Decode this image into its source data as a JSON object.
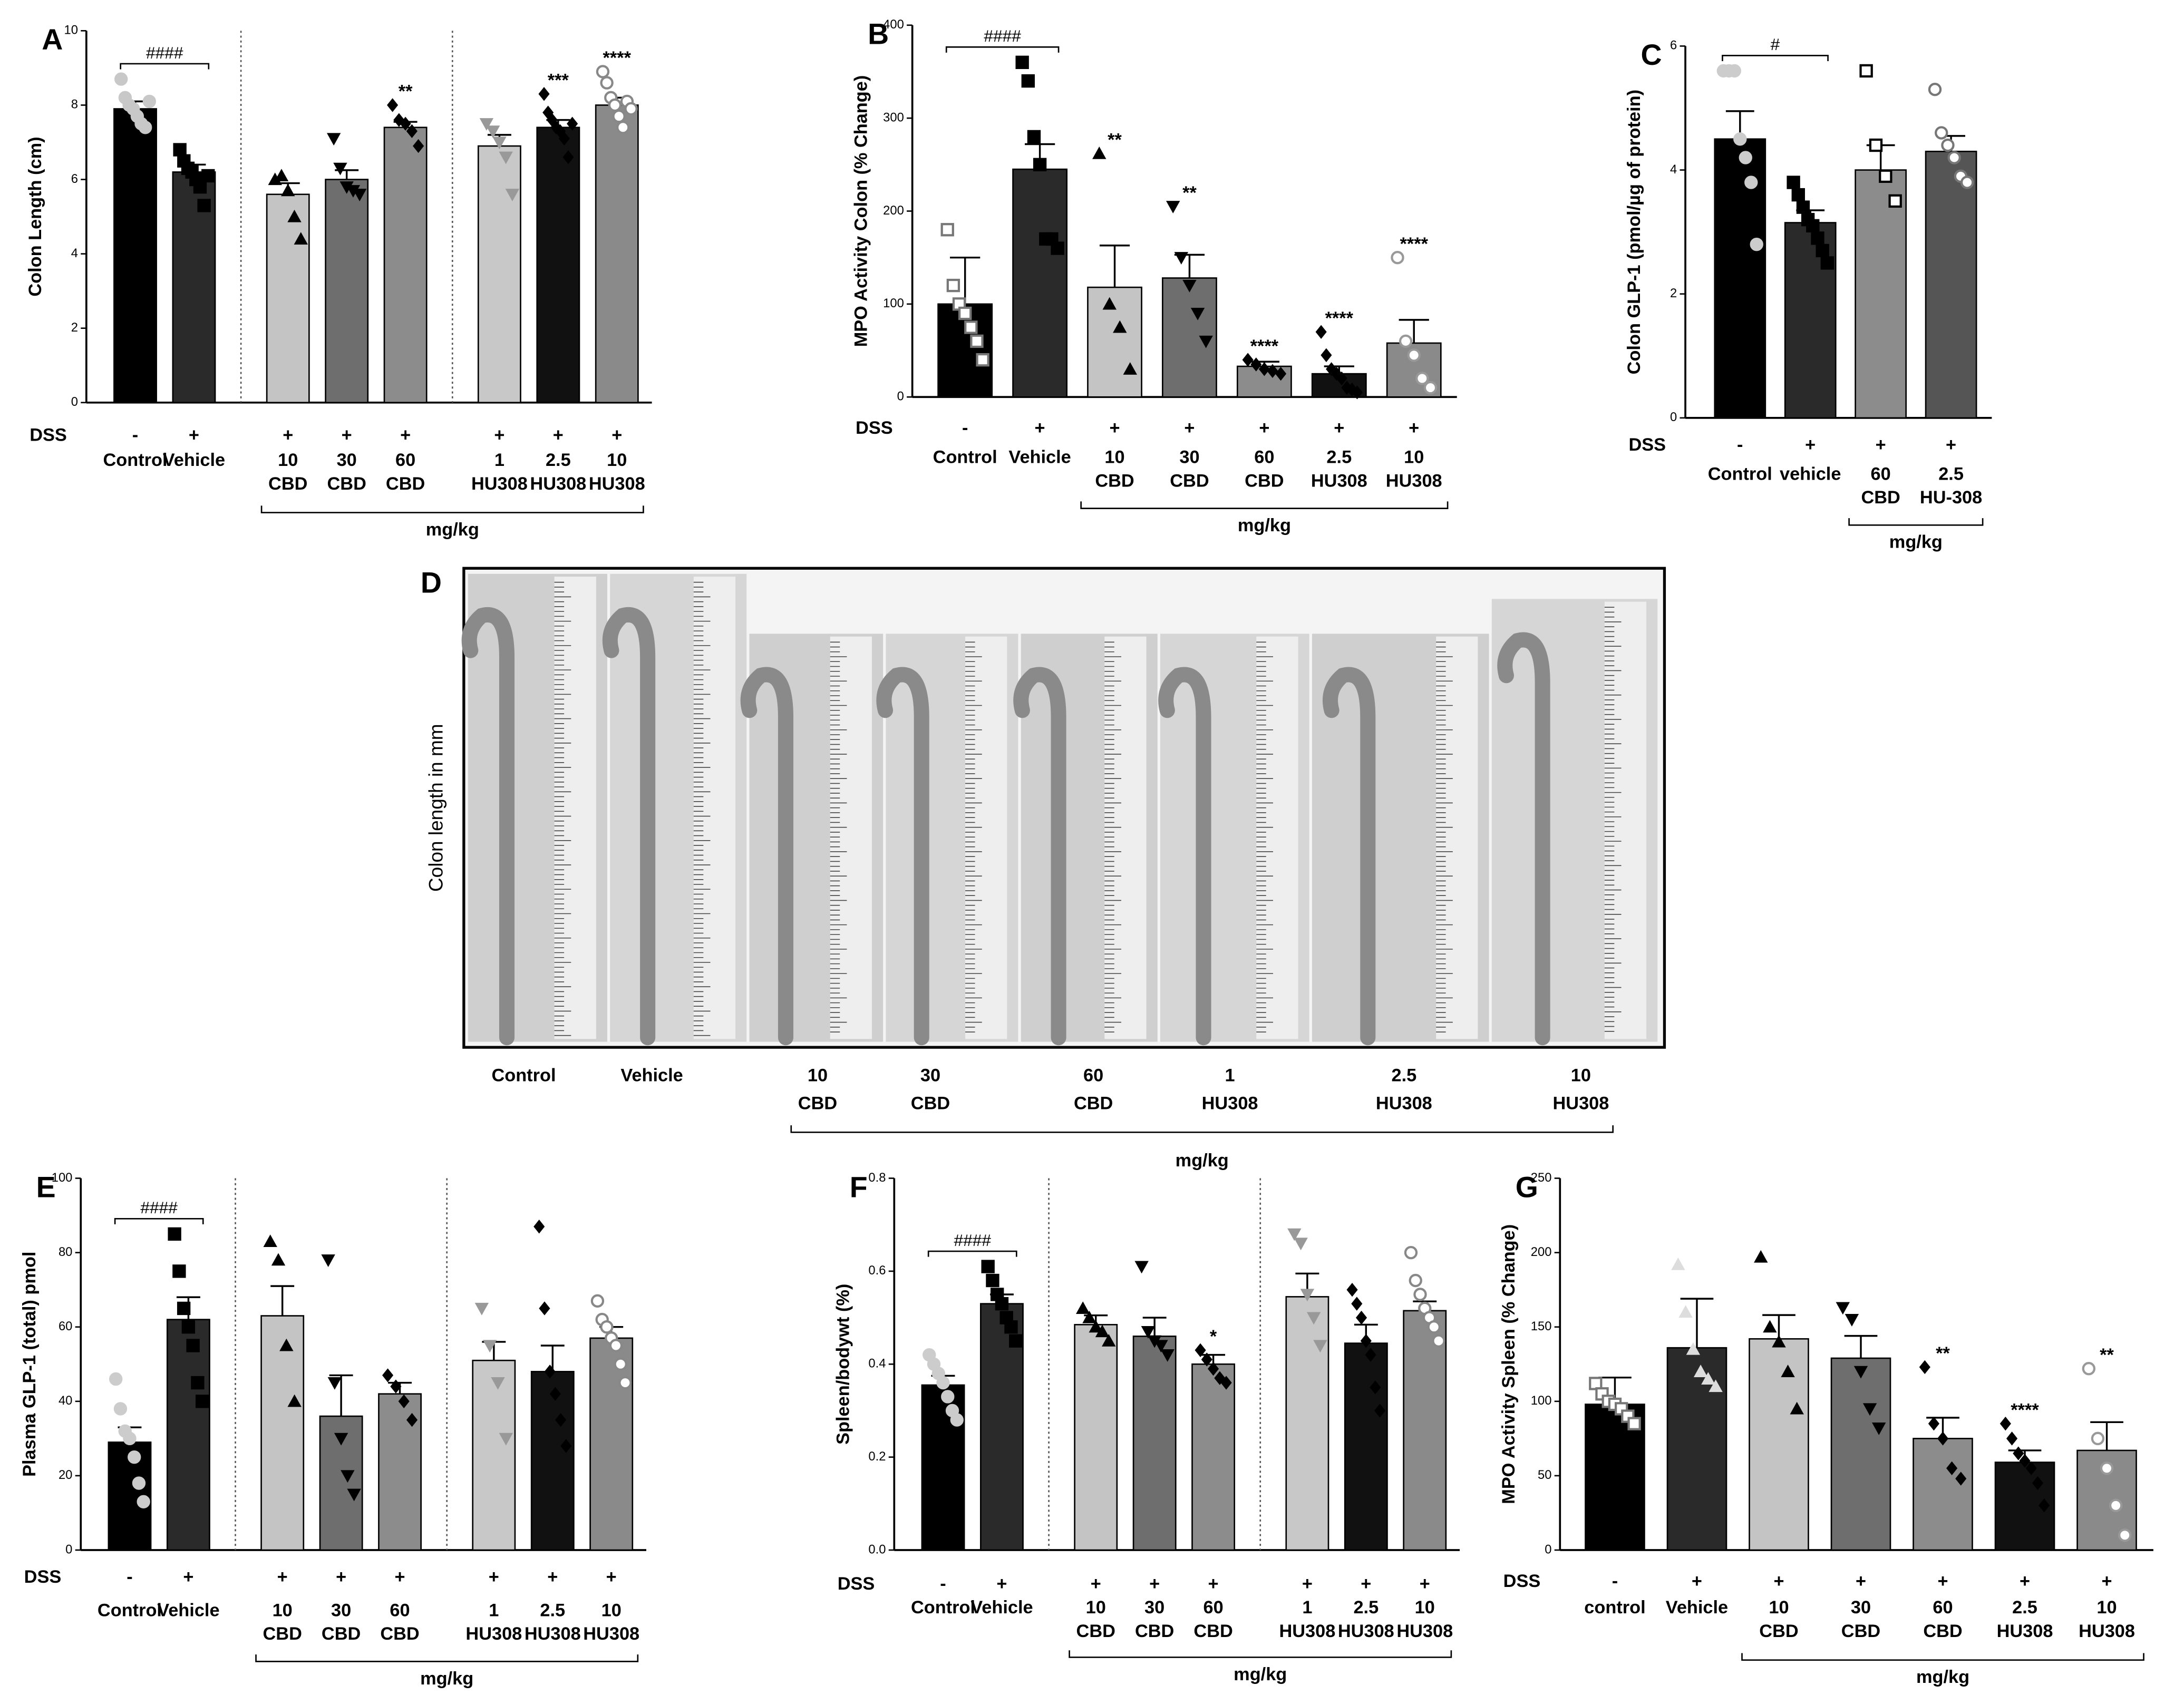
{
  "chart_data": [
    {
      "type": "bar",
      "panel": "A",
      "y_label": "Colon Length (cm)",
      "ylim": [
        0,
        10
      ],
      "yticks": [
        0,
        2,
        4,
        6,
        8,
        10
      ],
      "factor_label": "DSS",
      "factor": [
        "-",
        "+",
        "+",
        "+",
        "+",
        "+",
        "+",
        "+"
      ],
      "categories": [
        [
          "Control"
        ],
        [
          "Vehicle"
        ],
        [
          "10",
          "CBD"
        ],
        [
          "30",
          "CBD"
        ],
        [
          "60",
          "CBD"
        ],
        [
          "1",
          "HU308"
        ],
        [
          "2.5",
          "HU308"
        ],
        [
          "10",
          "HU308"
        ]
      ],
      "values": [
        7.9,
        6.2,
        5.6,
        6.0,
        7.4,
        6.9,
        7.4,
        8.0
      ],
      "errors": [
        0.2,
        0.2,
        0.3,
        0.25,
        0.15,
        0.3,
        0.2,
        0.2
      ],
      "colors": [
        "#000000",
        "#2a2a2a",
        "#c4c4c4",
        "#6e6e6e",
        "#8c8c8c",
        "#c8c8c8",
        "#111111",
        "#8a8a8a"
      ],
      "markers": [
        "circle",
        "square",
        "triangle",
        "tri-down",
        "diamond",
        "tri-down",
        "diamond",
        "circle-open"
      ],
      "point_colors": [
        "#c8c8c8",
        "#000000",
        "#000000",
        "#000000",
        "#000000",
        "#999999",
        "#000000",
        "#888888"
      ],
      "points": [
        [
          8.7,
          8.2,
          8.0,
          7.9,
          7.7,
          7.5,
          7.4,
          8.1
        ],
        [
          6.8,
          6.5,
          6.3,
          6.2,
          6.0,
          5.8,
          5.3,
          6.1
        ],
        [
          6.0,
          6.1,
          5.7,
          5.0,
          4.4
        ],
        [
          7.1,
          6.3,
          5.8,
          5.7,
          5.6
        ],
        [
          8.0,
          7.6,
          7.5,
          7.3,
          6.9
        ],
        [
          7.5,
          7.3,
          7.0,
          6.6,
          5.6
        ],
        [
          8.3,
          7.8,
          7.6,
          7.4,
          7.3,
          7.1,
          6.6,
          7.5
        ],
        [
          8.9,
          8.6,
          8.2,
          8.0,
          7.7,
          7.4,
          8.1,
          7.9
        ]
      ],
      "significance": [
        null,
        null,
        null,
        null,
        "**",
        null,
        "***",
        "****"
      ],
      "bracket_label": "####",
      "span_label": "mg/kg",
      "dividers": true
    },
    {
      "type": "bar",
      "panel": "B",
      "y_label": "MPO Activity Colon (% Change)",
      "ylim": [
        0,
        400
      ],
      "yticks": [
        0,
        100,
        200,
        300,
        400
      ],
      "factor_label": "DSS",
      "factor": [
        "-",
        "+",
        "+",
        "+",
        "+",
        "+",
        "+"
      ],
      "categories": [
        [
          "Control"
        ],
        [
          "Vehicle"
        ],
        [
          "10",
          "CBD"
        ],
        [
          "30",
          "CBD"
        ],
        [
          "60",
          "CBD"
        ],
        [
          "2.5",
          "HU308"
        ],
        [
          "10",
          "HU308"
        ]
      ],
      "values": [
        100,
        245,
        118,
        128,
        33,
        25,
        58
      ],
      "errors": [
        50,
        27,
        45,
        25,
        5,
        8,
        25
      ],
      "colors": [
        "#000000",
        "#2a2a2a",
        "#c4c4c4",
        "#6e6e6e",
        "#8c8c8c",
        "#111111",
        "#8a8a8a"
      ],
      "markers": [
        "square-open",
        "square",
        "triangle",
        "tri-down",
        "diamond",
        "diamond",
        "circle-open"
      ],
      "point_colors": [
        "#777777",
        "#000000",
        "#000000",
        "#000000",
        "#000000",
        "#000000",
        "#999999"
      ],
      "points": [
        [
          180,
          120,
          100,
          90,
          75,
          60,
          40
        ],
        [
          360,
          340,
          280,
          250,
          170,
          170,
          160
        ],
        [
          262,
          100,
          75,
          30
        ],
        [
          205,
          150,
          120,
          90,
          60
        ],
        [
          40,
          35,
          30,
          28,
          25
        ],
        [
          70,
          45,
          30,
          25,
          20,
          10,
          8,
          5
        ],
        [
          150,
          60,
          45,
          20,
          10
        ]
      ],
      "significance": [
        null,
        null,
        "**",
        "**",
        "****",
        "****",
        "****"
      ],
      "bracket_label": "####",
      "span_label": "mg/kg",
      "dividers": false
    },
    {
      "type": "bar",
      "panel": "C",
      "y_label": "Colon GLP-1 (pmol/µg of protein)",
      "ylim": [
        0,
        6
      ],
      "yticks": [
        0,
        2,
        4,
        6
      ],
      "factor_label": "DSS",
      "factor": [
        "-",
        "+",
        "+",
        "+"
      ],
      "categories": [
        [
          "Control"
        ],
        [
          "vehicle"
        ],
        [
          "60",
          "CBD"
        ],
        [
          "2.5",
          "HU-308"
        ]
      ],
      "values": [
        4.5,
        3.15,
        4.0,
        4.3
      ],
      "errors": [
        0.45,
        0.2,
        0.4,
        0.25
      ],
      "colors": [
        "#000000",
        "#2a2a2a",
        "#8c8c8c",
        "#555555"
      ],
      "markers": [
        "circle",
        "square",
        "square-open",
        "circle-open"
      ],
      "point_colors": [
        "#cccccc",
        "#000000",
        "#000000",
        "#777777"
      ],
      "points": [
        [
          5.6,
          5.6,
          5.6,
          4.5,
          4.2,
          3.8,
          2.8
        ],
        [
          3.8,
          3.6,
          3.4,
          3.2,
          3.1,
          2.9,
          2.7,
          2.5
        ],
        [
          5.6,
          4.4,
          3.9,
          3.5
        ],
        [
          5.3,
          4.6,
          4.4,
          4.2,
          3.9,
          3.8
        ]
      ],
      "significance": [
        null,
        null,
        null,
        null
      ],
      "bracket_label": "#",
      "span_label": "mg/kg",
      "dividers": false
    },
    {
      "type": "bar",
      "panel": "E",
      "y_label": "Plasma GLP-1 (total) pmol",
      "ylim": [
        0,
        100
      ],
      "yticks": [
        0,
        20,
        40,
        60,
        80,
        100
      ],
      "factor_label": "DSS",
      "factor": [
        "-",
        "+",
        "+",
        "+",
        "+",
        "+",
        "+",
        "+"
      ],
      "categories": [
        [
          "Control"
        ],
        [
          "Vehicle"
        ],
        [
          "10",
          "CBD"
        ],
        [
          "30",
          "CBD"
        ],
        [
          "60",
          "CBD"
        ],
        [
          "1",
          "HU308"
        ],
        [
          "2.5",
          "HU308"
        ],
        [
          "10",
          "HU308"
        ]
      ],
      "values": [
        29,
        62,
        63,
        36,
        42,
        51,
        48,
        57
      ],
      "errors": [
        4,
        6,
        8,
        11,
        3,
        5,
        7,
        3
      ],
      "colors": [
        "#000000",
        "#2a2a2a",
        "#c4c4c4",
        "#6e6e6e",
        "#8c8c8c",
        "#c8c8c8",
        "#111111",
        "#8a8a8a"
      ],
      "markers": [
        "circle",
        "square",
        "triangle",
        "tri-down",
        "diamond",
        "tri-down",
        "diamond",
        "circle-open"
      ],
      "point_colors": [
        "#cccccc",
        "#000000",
        "#000000",
        "#000000",
        "#000000",
        "#999999",
        "#000000",
        "#888888"
      ],
      "points": [
        [
          46,
          38,
          32,
          30,
          25,
          18,
          13
        ],
        [
          85,
          75,
          65,
          60,
          55,
          45,
          40
        ],
        [
          83,
          78,
          55,
          40
        ],
        [
          78,
          45,
          30,
          20,
          15
        ],
        [
          47,
          44,
          40,
          35
        ],
        [
          65,
          55,
          45,
          30
        ],
        [
          87,
          65,
          48,
          42,
          35,
          28
        ],
        [
          67,
          62,
          60,
          57,
          55,
          50,
          45
        ]
      ],
      "significance": [
        null,
        null,
        null,
        null,
        null,
        null,
        null,
        null
      ],
      "bracket_label": "####",
      "span_label": "mg/kg",
      "dividers": true
    },
    {
      "type": "bar",
      "panel": "F",
      "y_label": "Spleen/bodywt (%)",
      "ylim": [
        0,
        0.8
      ],
      "yticks": [
        {
          "value": 0,
          "label": "0.0"
        },
        0.2,
        0.4,
        0.6,
        0.8
      ],
      "factor_label": "DSS",
      "factor": [
        "-",
        "+",
        "+",
        "+",
        "+",
        "+",
        "+",
        "+"
      ],
      "categories": [
        [
          "Control"
        ],
        [
          "Vehicle"
        ],
        [
          "10",
          "CBD"
        ],
        [
          "30",
          "CBD"
        ],
        [
          "60",
          "CBD"
        ],
        [
          "1",
          "HU308"
        ],
        [
          "2.5",
          "HU308"
        ],
        [
          "10",
          "HU308"
        ]
      ],
      "values": [
        0.355,
        0.53,
        0.485,
        0.46,
        0.4,
        0.545,
        0.445,
        0.515
      ],
      "errors": [
        0.02,
        0.02,
        0.02,
        0.04,
        0.02,
        0.05,
        0.04,
        0.02
      ],
      "colors": [
        "#000000",
        "#2a2a2a",
        "#c4c4c4",
        "#6e6e6e",
        "#8c8c8c",
        "#c8c8c8",
        "#111111",
        "#8a8a8a"
      ],
      "markers": [
        "circle",
        "square",
        "triangle",
        "tri-down",
        "diamond",
        "tri-down",
        "diamond",
        "circle-open"
      ],
      "point_colors": [
        "#cccccc",
        "#000000",
        "#000000",
        "#000000",
        "#000000",
        "#999999",
        "#000000",
        "#888888"
      ],
      "points": [
        [
          0.42,
          0.4,
          0.38,
          0.36,
          0.33,
          0.3,
          0.28
        ],
        [
          0.61,
          0.58,
          0.55,
          0.53,
          0.5,
          0.48,
          0.45
        ],
        [
          0.52,
          0.5,
          0.48,
          0.47,
          0.45
        ],
        [
          0.61,
          0.47,
          0.45,
          0.44,
          0.42
        ],
        [
          0.43,
          0.41,
          0.39,
          0.37,
          0.36
        ],
        [
          0.68,
          0.66,
          0.55,
          0.5,
          0.44
        ],
        [
          0.56,
          0.53,
          0.5,
          0.45,
          0.42,
          0.35,
          0.3
        ],
        [
          0.64,
          0.58,
          0.55,
          0.52,
          0.5,
          0.48,
          0.45
        ]
      ],
      "significance": [
        null,
        null,
        null,
        null,
        "*",
        null,
        null,
        null
      ],
      "bracket_label": "####",
      "span_label": "mg/kg",
      "dividers": true
    },
    {
      "type": "bar",
      "panel": "G",
      "y_label": "MPO Activity Spleen (% Change)",
      "ylim": [
        0,
        250
      ],
      "yticks": [
        0,
        50,
        100,
        150,
        200,
        250
      ],
      "factor_label": "DSS",
      "factor": [
        "-",
        "+",
        "+",
        "+",
        "+",
        "+",
        "+"
      ],
      "categories": [
        [
          "control"
        ],
        [
          "Vehicle"
        ],
        [
          "10",
          "CBD"
        ],
        [
          "30",
          "CBD"
        ],
        [
          "60",
          "CBD"
        ],
        [
          "2.5",
          "HU308"
        ],
        [
          "10",
          "HU308"
        ]
      ],
      "values": [
        98,
        136,
        142,
        129,
        75,
        59,
        67
      ],
      "errors": [
        18,
        33,
        16,
        15,
        14,
        8,
        19
      ],
      "colors": [
        "#000000",
        "#2a2a2a",
        "#c4c4c4",
        "#6e6e6e",
        "#8c8c8c",
        "#111111",
        "#8a8a8a"
      ],
      "markers": [
        "square-open",
        "triangle",
        "triangle",
        "tri-down",
        "diamond",
        "diamond",
        "circle-open"
      ],
      "point_colors": [
        "#777777",
        "#dddddd",
        "#000000",
        "#000000",
        "#000000",
        "#000000",
        "#999999"
      ],
      "points": [
        [
          112,
          105,
          100,
          98,
          95,
          90,
          85
        ],
        [
          192,
          160,
          135,
          120,
          115,
          110
        ],
        [
          197,
          150,
          140,
          120,
          95
        ],
        [
          163,
          155,
          120,
          95,
          82
        ],
        [
          123,
          85,
          75,
          55,
          48
        ],
        [
          85,
          75,
          65,
          60,
          55,
          45,
          30
        ],
        [
          122,
          75,
          55,
          30,
          10
        ]
      ],
      "significance": [
        null,
        null,
        null,
        null,
        "**",
        "****",
        "**"
      ],
      "bracket_label": null,
      "span_label": "mg/kg",
      "dividers": false
    }
  ],
  "photo_panel": {
    "label": "D",
    "y_label": "Colon length in mm",
    "groups": [
      [
        "Control"
      ],
      [
        "Vehicle"
      ],
      [
        "10",
        "CBD"
      ],
      [
        "30",
        "CBD"
      ],
      [
        "60",
        "CBD"
      ],
      [
        "1",
        "HU308"
      ],
      [
        "2.5",
        "HU308"
      ],
      [
        "10",
        "HU308"
      ]
    ],
    "span_label": "mg/kg"
  }
}
